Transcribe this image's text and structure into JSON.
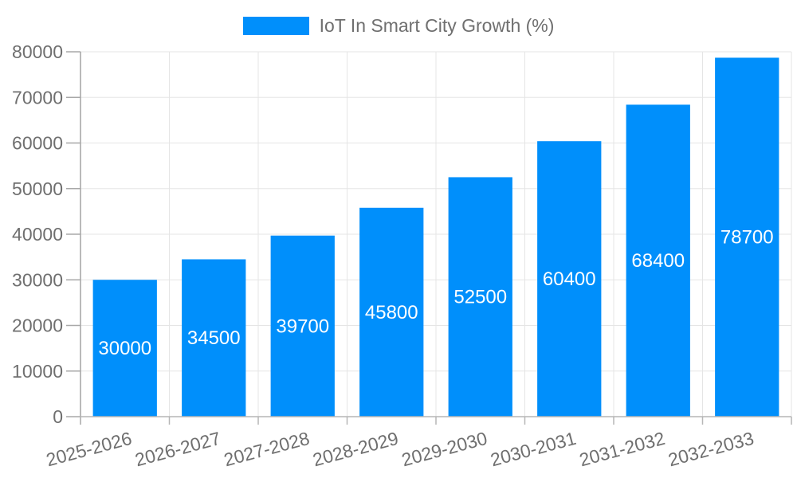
{
  "chart_data": {
    "type": "bar",
    "title": "IoT In Smart City Growth (%)",
    "legend": {
      "label": "IoT In Smart City Growth (%)",
      "position": "top"
    },
    "categories": [
      "2025-2026",
      "2026-2027",
      "2027-2028",
      "2028-2029",
      "2029-2030",
      "2030-2031",
      "2031-2032",
      "2032-2033"
    ],
    "values": [
      30000,
      34500,
      39700,
      45800,
      52500,
      60400,
      68400,
      78700
    ],
    "value_labels": [
      "30000",
      "34500",
      "39700",
      "45800",
      "52500",
      "60400",
      "68400",
      "78700"
    ],
    "xlabel": "",
    "ylabel": "",
    "ylim": [
      0,
      80000
    ],
    "ytick_step": 10000,
    "ytick_labels": [
      "0",
      "10000",
      "20000",
      "30000",
      "40000",
      "50000",
      "60000",
      "70000",
      "80000"
    ],
    "grid": true,
    "x_label_rotation": -15,
    "colors": {
      "bar": "#008FFB",
      "data_label": "#ffffff",
      "axis_text": "#6f6f6f",
      "grid_line": "#e5e5e5",
      "x_axis_line": "#b6b6b6",
      "y_axis_line": "#a3a3a3",
      "tick": "#a8a8a8",
      "background": "#ffffff"
    }
  }
}
